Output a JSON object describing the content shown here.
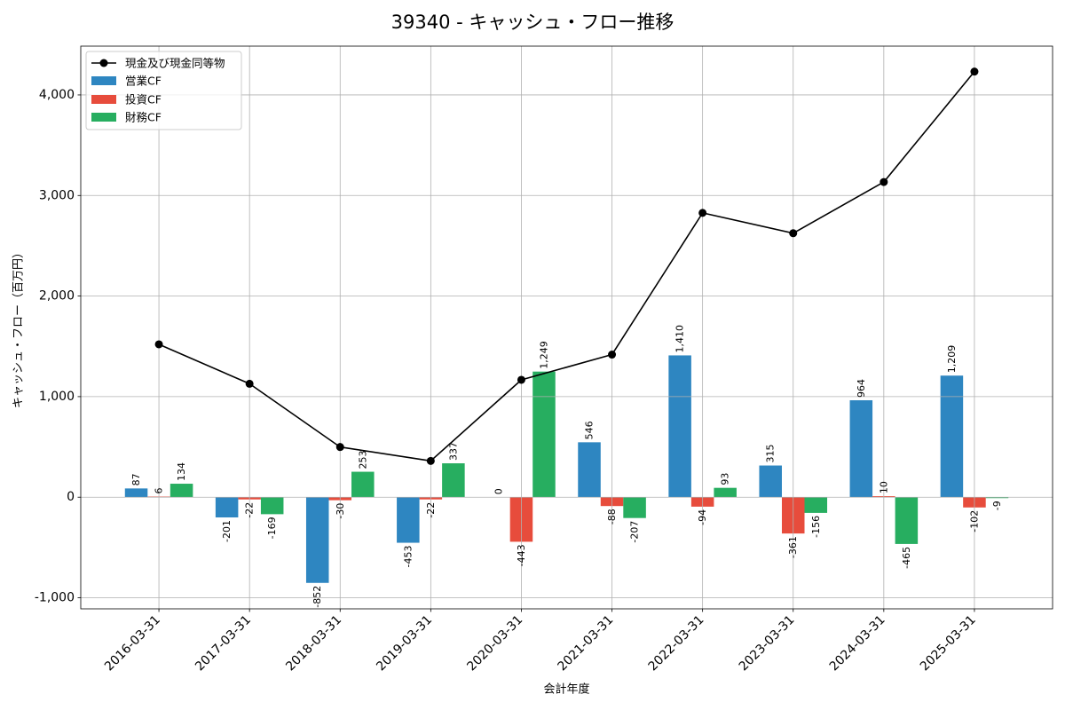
{
  "chart_data": {
    "type": "bar",
    "title": "39340 - キャッシュ・フロー推移",
    "xlabel": "会計年度",
    "ylabel": "キャッシュ・フロー（百万円）",
    "categories": [
      "2016-03-31",
      "2017-03-31",
      "2018-03-31",
      "2019-03-31",
      "2020-03-31",
      "2021-03-31",
      "2022-03-31",
      "2023-03-31",
      "2024-03-31",
      "2025-03-31"
    ],
    "ylim": [
      -1110,
      4485
    ],
    "yticks": [
      -1000,
      0,
      1000,
      2000,
      3000,
      4000
    ],
    "grid": true,
    "legend_position": "top-left",
    "series": [
      {
        "name": "現金及び現金同等物",
        "type": "line",
        "color": "#000000",
        "values": [
          1520,
          1128,
          499,
          361,
          1167,
          1418,
          2827,
          2625,
          3134,
          4232
        ]
      },
      {
        "name": "営業CF",
        "type": "bar",
        "color": "#2e86c1",
        "values": [
          87,
          -201,
          -852,
          -453,
          0,
          546,
          1410,
          315,
          964,
          1209
        ]
      },
      {
        "name": "投資CF",
        "type": "bar",
        "color": "#e74c3c",
        "values": [
          6,
          -22,
          -30,
          -22,
          -443,
          -88,
          -94,
          -361,
          10,
          -102
        ]
      },
      {
        "name": "財務CF",
        "type": "bar",
        "color": "#27ae60",
        "values": [
          134,
          -169,
          253,
          337,
          1249,
          -207,
          93,
          -156,
          -465,
          -9
        ]
      }
    ]
  }
}
